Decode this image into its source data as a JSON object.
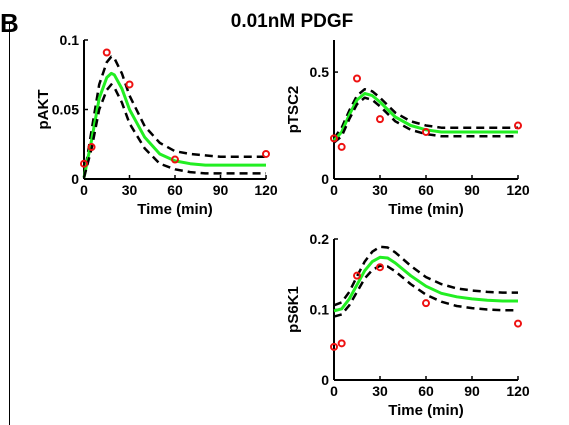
{
  "figure": {
    "title": "0.01nM PDGF",
    "panel_letter": "B"
  },
  "colors": {
    "fit": "#22ee22",
    "bounds": "#000000",
    "data_points": "#ee1111"
  },
  "chart_data": [
    {
      "type": "line",
      "id": "pakt",
      "title": "",
      "xlabel": "Time (min)",
      "ylabel": "pAKT",
      "xlim": [
        0,
        120
      ],
      "ylim": [
        0,
        0.1
      ],
      "xticks": [
        0,
        30,
        60,
        90,
        120
      ],
      "yticks": [
        0,
        0.05,
        0.1
      ],
      "yticklabels": [
        "0",
        "0.05",
        "0.1"
      ],
      "series": [
        {
          "role": "upper",
          "style": "dashed",
          "x": [
            0,
            5,
            10,
            15,
            18,
            20,
            25,
            30,
            40,
            50,
            60,
            70,
            80,
            90,
            100,
            110,
            120
          ],
          "y": [
            0.001,
            0.035,
            0.068,
            0.084,
            0.088,
            0.087,
            0.076,
            0.06,
            0.038,
            0.026,
            0.02,
            0.018,
            0.017,
            0.016,
            0.016,
            0.016,
            0.016
          ]
        },
        {
          "role": "fit",
          "style": "solid",
          "x": [
            0,
            5,
            10,
            15,
            18,
            20,
            25,
            30,
            40,
            50,
            60,
            70,
            80,
            90,
            100,
            110,
            120
          ],
          "y": [
            0.001,
            0.028,
            0.058,
            0.073,
            0.076,
            0.075,
            0.065,
            0.05,
            0.03,
            0.018,
            0.013,
            0.011,
            0.01,
            0.01,
            0.01,
            0.01,
            0.01
          ]
        },
        {
          "role": "lower",
          "style": "dashed",
          "x": [
            0,
            5,
            10,
            15,
            18,
            20,
            25,
            30,
            40,
            50,
            60,
            70,
            80,
            90,
            100,
            110,
            120
          ],
          "y": [
            0.001,
            0.022,
            0.05,
            0.064,
            0.068,
            0.066,
            0.055,
            0.04,
            0.022,
            0.011,
            0.007,
            0.005,
            0.004,
            0.004,
            0.004,
            0.004,
            0.004
          ]
        }
      ],
      "points": {
        "x": [
          0,
          5,
          15,
          30,
          60,
          120
        ],
        "y": [
          0.011,
          0.023,
          0.091,
          0.068,
          0.014,
          0.018
        ]
      }
    },
    {
      "type": "line",
      "id": "ptsc2",
      "title": "",
      "xlabel": "Time (min)",
      "ylabel": "pTSC2",
      "xlim": [
        0,
        120
      ],
      "ylim": [
        0,
        0.65
      ],
      "xticks": [
        0,
        30,
        60,
        90,
        120
      ],
      "yticks": [
        0,
        0.5
      ],
      "yticklabels": [
        "0",
        "0.5"
      ],
      "series": [
        {
          "role": "upper",
          "style": "dashed",
          "x": [
            0,
            5,
            10,
            15,
            20,
            25,
            30,
            40,
            50,
            60,
            70,
            80,
            90,
            100,
            110,
            120
          ],
          "y": [
            0.19,
            0.24,
            0.32,
            0.39,
            0.42,
            0.41,
            0.38,
            0.31,
            0.27,
            0.25,
            0.24,
            0.24,
            0.24,
            0.24,
            0.24,
            0.24
          ]
        },
        {
          "role": "fit",
          "style": "solid",
          "x": [
            0,
            5,
            10,
            15,
            20,
            25,
            30,
            40,
            50,
            60,
            70,
            80,
            90,
            100,
            110,
            120
          ],
          "y": [
            0.18,
            0.22,
            0.3,
            0.37,
            0.4,
            0.39,
            0.36,
            0.29,
            0.25,
            0.23,
            0.22,
            0.22,
            0.22,
            0.22,
            0.22,
            0.22
          ]
        },
        {
          "role": "lower",
          "style": "dashed",
          "x": [
            0,
            5,
            10,
            15,
            20,
            25,
            30,
            40,
            50,
            60,
            70,
            80,
            90,
            100,
            110,
            120
          ],
          "y": [
            0.17,
            0.2,
            0.28,
            0.35,
            0.38,
            0.37,
            0.34,
            0.27,
            0.23,
            0.21,
            0.2,
            0.2,
            0.2,
            0.2,
            0.2,
            0.2
          ]
        }
      ],
      "points": {
        "x": [
          0,
          5,
          15,
          30,
          60,
          120
        ],
        "y": [
          0.19,
          0.15,
          0.47,
          0.28,
          0.22,
          0.25
        ]
      }
    },
    {
      "type": "line",
      "id": "ps6k1",
      "title": "",
      "xlabel": "Time (min)",
      "ylabel": "pS6K1",
      "xlim": [
        0,
        120
      ],
      "ylim": [
        0,
        0.2
      ],
      "xticks": [
        0,
        30,
        60,
        90,
        120
      ],
      "yticks": [
        0,
        0.1,
        0.2
      ],
      "yticklabels": [
        "0",
        "0.1",
        "0.2"
      ],
      "series": [
        {
          "role": "upper",
          "style": "dashed",
          "x": [
            0,
            5,
            10,
            15,
            20,
            25,
            30,
            35,
            40,
            50,
            60,
            70,
            80,
            90,
            100,
            110,
            120
          ],
          "y": [
            0.106,
            0.11,
            0.125,
            0.147,
            0.168,
            0.182,
            0.189,
            0.188,
            0.181,
            0.162,
            0.146,
            0.136,
            0.13,
            0.127,
            0.125,
            0.124,
            0.124
          ]
        },
        {
          "role": "fit",
          "style": "solid",
          "x": [
            0,
            5,
            10,
            15,
            20,
            25,
            30,
            35,
            40,
            50,
            60,
            70,
            80,
            90,
            100,
            110,
            120
          ],
          "y": [
            0.098,
            0.101,
            0.115,
            0.135,
            0.155,
            0.168,
            0.174,
            0.173,
            0.166,
            0.148,
            0.133,
            0.123,
            0.118,
            0.115,
            0.113,
            0.112,
            0.112
          ]
        },
        {
          "role": "lower",
          "style": "dashed",
          "x": [
            0,
            5,
            10,
            15,
            20,
            25,
            30,
            35,
            40,
            50,
            60,
            70,
            80,
            90,
            100,
            110,
            120
          ],
          "y": [
            0.09,
            0.093,
            0.106,
            0.125,
            0.144,
            0.156,
            0.162,
            0.161,
            0.154,
            0.136,
            0.121,
            0.111,
            0.105,
            0.102,
            0.1,
            0.099,
            0.099
          ]
        }
      ],
      "points": {
        "x": [
          0,
          5,
          15,
          30,
          60,
          120
        ],
        "y": [
          0.047,
          0.052,
          0.148,
          0.16,
          0.109,
          0.08
        ]
      }
    }
  ]
}
